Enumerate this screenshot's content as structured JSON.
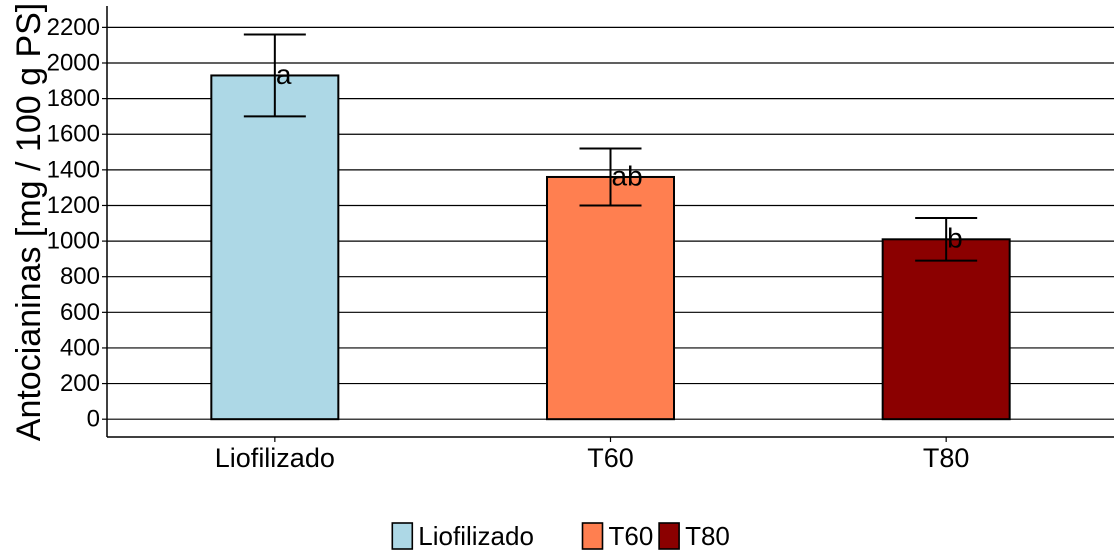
{
  "chart_data": {
    "type": "bar",
    "ylabel": "Antocianinas [mg / 100 g PS]",
    "xlabel": "",
    "categories": [
      "Liofilizado",
      "T60",
      "T80"
    ],
    "values": [
      1930,
      1360,
      1010
    ],
    "error_low": [
      1700,
      1200,
      890
    ],
    "error_high": [
      2160,
      1520,
      1130
    ],
    "group_labels": [
      "a",
      "ab",
      "b"
    ],
    "colors": [
      "#add8e6",
      "#ff7f50",
      "#8b0000"
    ],
    "ylim": [
      -100,
      2320
    ],
    "yticks": [
      0,
      200,
      400,
      600,
      800,
      1000,
      1200,
      1400,
      1600,
      1800,
      2000,
      2200
    ],
    "grid": "horizontal",
    "legend": {
      "placement": "bottom",
      "entries": [
        "Liofilizado",
        "T60",
        "T80"
      ]
    }
  }
}
